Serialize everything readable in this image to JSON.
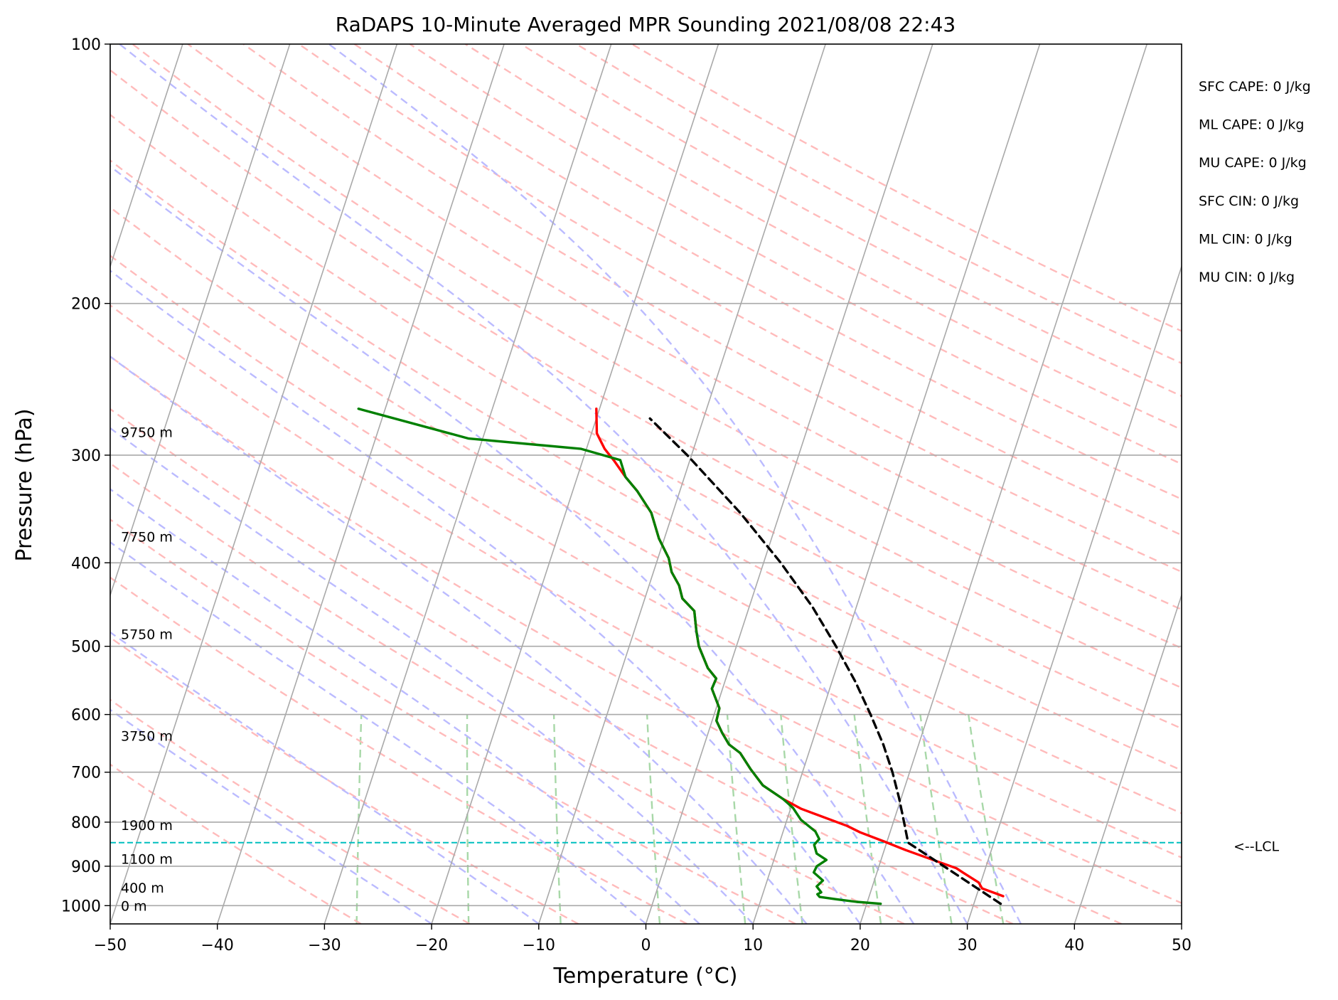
{
  "chart_data": {
    "type": "line",
    "title": "RaDAPS 10-Minute Averaged MPR Sounding 2021/08/08 22:43",
    "xlabel": "Temperature (°C)",
    "ylabel": "Pressure (hPa)",
    "xlim": [
      -50,
      50
    ],
    "ylim": [
      1050,
      100
    ],
    "y_scale": "log",
    "x_ticks": [
      "−50",
      "−40",
      "−30",
      "−20",
      "−10",
      "0",
      "10",
      "20",
      "30",
      "40",
      "50"
    ],
    "y_ticks": [
      "100",
      "200",
      "300",
      "400",
      "500",
      "600",
      "700",
      "800",
      "900",
      "1000"
    ],
    "skew_t": true,
    "grid": true,
    "series": [
      {
        "color": "#ff0000",
        "points": [
          [
            32.5,
            975
          ],
          [
            30.3,
            955
          ],
          [
            29.8,
            940
          ],
          [
            28.0,
            915
          ],
          [
            27.3,
            905
          ],
          [
            24.5,
            882
          ],
          [
            22.0,
            862
          ],
          [
            19.8,
            843
          ],
          [
            17.2,
            822
          ],
          [
            15.8,
            808
          ],
          [
            11.0,
            772
          ],
          [
            9.0,
            752
          ],
          [
            6.7,
            725
          ],
          [
            5.1,
            695
          ],
          [
            3.6,
            665
          ],
          [
            2.3,
            650
          ],
          [
            1.3,
            630
          ],
          [
            0.4,
            610
          ],
          [
            0.3,
            590
          ],
          [
            -1.0,
            560
          ],
          [
            -0.9,
            545
          ],
          [
            -2.0,
            530
          ],
          [
            -3.5,
            500
          ],
          [
            -4.2,
            480
          ],
          [
            -5.0,
            455
          ],
          [
            -6.5,
            440
          ],
          [
            -7.2,
            425
          ],
          [
            -8.3,
            410
          ],
          [
            -9.0,
            395
          ],
          [
            -10.5,
            375
          ],
          [
            -12.0,
            350
          ],
          [
            -14.0,
            330
          ],
          [
            -15.5,
            318
          ],
          [
            -17.0,
            305
          ],
          [
            -18.3,
            295
          ],
          [
            -19.5,
            283
          ],
          [
            -20.3,
            265
          ]
        ]
      },
      {
        "color": "#008000",
        "points": [
          [
            21.3,
            995
          ],
          [
            19.0,
            990
          ],
          [
            17.0,
            983
          ],
          [
            15.4,
            977
          ],
          [
            15.1,
            970
          ],
          [
            15.4,
            965
          ],
          [
            14.8,
            950
          ],
          [
            15.2,
            935
          ],
          [
            14.1,
            915
          ],
          [
            14.2,
            900
          ],
          [
            14.9,
            885
          ],
          [
            13.8,
            870
          ],
          [
            13.3,
            850
          ],
          [
            13.6,
            837
          ],
          [
            13.0,
            820
          ],
          [
            11.3,
            795
          ],
          [
            10.2,
            770
          ],
          [
            9.0,
            752
          ],
          [
            6.7,
            725
          ],
          [
            5.1,
            695
          ],
          [
            3.6,
            665
          ],
          [
            2.3,
            650
          ],
          [
            1.3,
            630
          ],
          [
            0.4,
            610
          ],
          [
            0.3,
            590
          ],
          [
            -1.0,
            560
          ],
          [
            -0.9,
            545
          ],
          [
            -2.0,
            530
          ],
          [
            -3.5,
            500
          ],
          [
            -4.2,
            480
          ],
          [
            -5.0,
            455
          ],
          [
            -6.5,
            440
          ],
          [
            -7.2,
            425
          ],
          [
            -8.3,
            410
          ],
          [
            -9.0,
            395
          ],
          [
            -10.5,
            375
          ],
          [
            -12.0,
            350
          ],
          [
            -14.0,
            330
          ],
          [
            -15.5,
            318
          ],
          [
            -16.5,
            304
          ],
          [
            -20.5,
            295
          ],
          [
            -31.3,
            287
          ],
          [
            -42.5,
            265
          ]
        ]
      },
      {
        "color": "#000000",
        "style": "dashed",
        "points": [
          [
            32.5,
            995
          ],
          [
            22.0,
            845
          ],
          [
            21.0,
            800
          ],
          [
            19.8,
            750
          ],
          [
            18.4,
            700
          ],
          [
            16.7,
            650
          ],
          [
            14.6,
            600
          ],
          [
            12.2,
            550
          ],
          [
            9.3,
            500
          ],
          [
            5.9,
            450
          ],
          [
            1.6,
            400
          ],
          [
            -3.7,
            350
          ],
          [
            -10.4,
            300
          ],
          [
            -15.0,
            272
          ]
        ]
      }
    ],
    "lcl": {
      "pressure": 845,
      "color": "#00bfbf",
      "label": "<--LCL"
    },
    "height_labels": [
      {
        "text": "9750 m",
        "pressure": 282
      },
      {
        "text": "7750 m",
        "pressure": 373
      },
      {
        "text": "5750 m",
        "pressure": 484
      },
      {
        "text": "3750 m",
        "pressure": 635
      },
      {
        "text": "1900 m",
        "pressure": 806
      },
      {
        "text": "1100 m",
        "pressure": 882
      },
      {
        "text": "400 m",
        "pressure": 953
      },
      {
        "text": "0 m",
        "pressure": 1000
      }
    ],
    "stats": [
      "SFC CAPE: 0 J/kg",
      "ML CAPE: 0 J/kg",
      "MU CAPE: 0 J/kg",
      "SFC CIN: 0 J/kg",
      "ML CIN: 0 J/kg",
      "MU CIN: 0 J/kg"
    ],
    "background_lines": {
      "isotherm_color": "#a9a9a9",
      "dry_adiabat_color": "#ffbbbb",
      "moist_adiabat_color": "#bbbbff",
      "mixing_ratio_color": "#a8d8a8"
    }
  }
}
